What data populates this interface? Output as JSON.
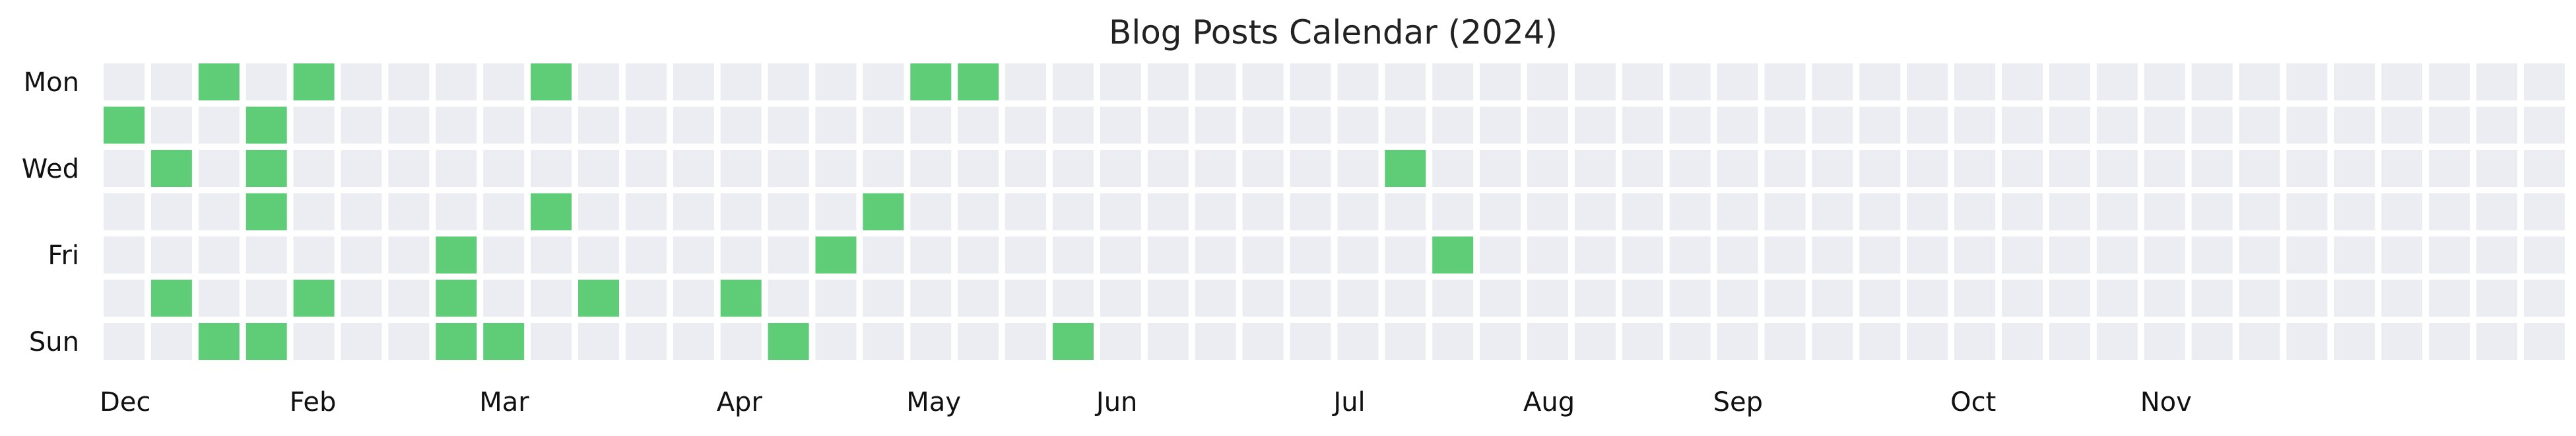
{
  "chart_data": {
    "type": "heatmap",
    "title": "Blog Posts Calendar (2024)",
    "weeks": 52,
    "days_shown": [
      "Mon",
      "Wed",
      "Fri",
      "Sun"
    ],
    "day_rows": [
      "Mon",
      "Tue",
      "Wed",
      "Thu",
      "Fri",
      "Sat",
      "Sun"
    ],
    "months": [
      {
        "label": "Dec",
        "week": 0
      },
      {
        "label": "Feb",
        "week": 4
      },
      {
        "label": "Mar",
        "week": 8
      },
      {
        "label": "Apr",
        "week": 13
      },
      {
        "label": "May",
        "week": 17
      },
      {
        "label": "Jun",
        "week": 21
      },
      {
        "label": "Jul",
        "week": 26
      },
      {
        "label": "Aug",
        "week": 30
      },
      {
        "label": "Sep",
        "week": 34
      },
      {
        "label": "Oct",
        "week": 39
      },
      {
        "label": "Nov",
        "week": 43
      }
    ],
    "posts": [
      {
        "week": 2,
        "day": "Mon"
      },
      {
        "week": 4,
        "day": "Mon"
      },
      {
        "week": 9,
        "day": "Mon"
      },
      {
        "week": 17,
        "day": "Mon"
      },
      {
        "week": 18,
        "day": "Mon"
      },
      {
        "week": 0,
        "day": "Tue"
      },
      {
        "week": 3,
        "day": "Tue"
      },
      {
        "week": 1,
        "day": "Wed"
      },
      {
        "week": 3,
        "day": "Wed"
      },
      {
        "week": 27,
        "day": "Wed"
      },
      {
        "week": 3,
        "day": "Thu"
      },
      {
        "week": 9,
        "day": "Thu"
      },
      {
        "week": 16,
        "day": "Thu"
      },
      {
        "week": 7,
        "day": "Fri"
      },
      {
        "week": 15,
        "day": "Fri"
      },
      {
        "week": 28,
        "day": "Fri"
      },
      {
        "week": 1,
        "day": "Sat"
      },
      {
        "week": 4,
        "day": "Sat"
      },
      {
        "week": 7,
        "day": "Sat"
      },
      {
        "week": 10,
        "day": "Sat"
      },
      {
        "week": 13,
        "day": "Sat"
      },
      {
        "week": 2,
        "day": "Sun"
      },
      {
        "week": 3,
        "day": "Sun"
      },
      {
        "week": 7,
        "day": "Sun"
      },
      {
        "week": 8,
        "day": "Sun"
      },
      {
        "week": 14,
        "day": "Sun"
      },
      {
        "week": 20,
        "day": "Sun"
      }
    ],
    "colors": {
      "post": "#5fcd78",
      "empty": "#ebedf2"
    },
    "grid": false
  }
}
